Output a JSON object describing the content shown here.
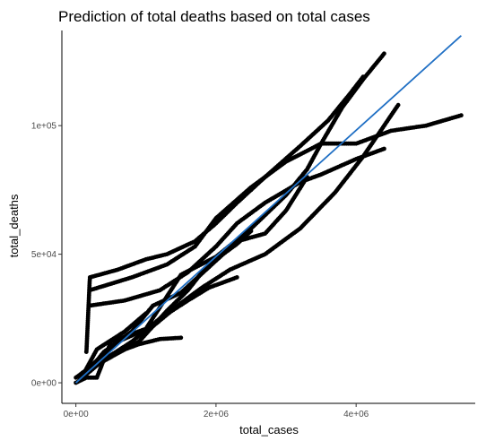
{
  "chart_data": {
    "type": "scatter",
    "title": "Prediction of total deaths based on total cases",
    "xlabel": "total_cases",
    "ylabel": "total_deaths",
    "xlim": [
      -200000,
      5700000
    ],
    "ylim": [
      -8000,
      137000
    ],
    "x_ticks": [
      {
        "value": 0,
        "label": "0e+00"
      },
      {
        "value": 2000000,
        "label": "2e+06"
      },
      {
        "value": 4000000,
        "label": "4e+06"
      }
    ],
    "y_ticks": [
      {
        "value": 0,
        "label": "0e+00"
      },
      {
        "value": 50000,
        "label": "5e+04"
      },
      {
        "value": 100000,
        "label": "1e+05"
      }
    ],
    "grid": false,
    "legend": "none",
    "point_color": "#000000",
    "fit_color": "#1f6fc4",
    "series": [
      {
        "points": [
          [
            0,
            0
          ],
          [
            150000,
            2000
          ],
          [
            300000,
            2000
          ],
          [
            500000,
            16000
          ],
          [
            1000000,
            21000
          ],
          [
            1500000,
            42000
          ],
          [
            2000000,
            49000
          ],
          [
            2500000,
            60000
          ],
          [
            3000000,
            73000
          ],
          [
            3300000,
            83000
          ],
          [
            3500000,
            93000
          ],
          [
            3800000,
            107000
          ],
          [
            4100000,
            118000
          ],
          [
            4400000,
            128000
          ]
        ]
      },
      {
        "points": [
          [
            150000,
            12000
          ],
          [
            200000,
            41000
          ],
          [
            600000,
            44000
          ],
          [
            1000000,
            48000
          ],
          [
            1300000,
            50000
          ],
          [
            1700000,
            55000
          ],
          [
            2000000,
            62000
          ],
          [
            2300000,
            70000
          ],
          [
            2700000,
            80000
          ],
          [
            3200000,
            92000
          ],
          [
            3600000,
            102000
          ],
          [
            3900000,
            112000
          ],
          [
            4100000,
            119000
          ]
        ]
      },
      {
        "points": [
          [
            200000,
            36000
          ],
          [
            800000,
            41000
          ],
          [
            1300000,
            46000
          ],
          [
            1700000,
            53000
          ],
          [
            2000000,
            64000
          ],
          [
            2500000,
            76000
          ],
          [
            3000000,
            86000
          ],
          [
            3500000,
            93000
          ],
          [
            4000000,
            93000
          ],
          [
            4500000,
            98000
          ],
          [
            5000000,
            100000
          ],
          [
            5500000,
            104000
          ]
        ]
      },
      {
        "points": [
          [
            200000,
            30000
          ],
          [
            700000,
            32000
          ],
          [
            1200000,
            36000
          ],
          [
            1600000,
            43000
          ],
          [
            2000000,
            53000
          ],
          [
            2300000,
            62000
          ],
          [
            2700000,
            70000
          ],
          [
            3200000,
            78000
          ],
          [
            3500000,
            81000
          ],
          [
            4000000,
            87000
          ],
          [
            4400000,
            91000
          ]
        ]
      },
      {
        "points": [
          [
            150000,
            5000
          ],
          [
            600000,
            16000
          ],
          [
            1100000,
            22000
          ],
          [
            1500000,
            31000
          ],
          [
            1800000,
            37000
          ],
          [
            2200000,
            44000
          ],
          [
            2700000,
            50000
          ],
          [
            3200000,
            60000
          ],
          [
            3700000,
            74000
          ],
          [
            4100000,
            88000
          ],
          [
            4400000,
            100000
          ],
          [
            4600000,
            108000
          ]
        ]
      },
      {
        "points": [
          [
            50000,
            1000
          ],
          [
            400000,
            9000
          ],
          [
            800000,
            16000
          ],
          [
            1200000,
            25000
          ],
          [
            1600000,
            32000
          ],
          [
            1900000,
            37000
          ],
          [
            2300000,
            41000
          ]
        ]
      },
      {
        "points": [
          [
            100000,
            4000
          ],
          [
            500000,
            10000
          ],
          [
            900000,
            16000
          ],
          [
            1300000,
            28000
          ],
          [
            1600000,
            36000
          ],
          [
            1800000,
            43000
          ],
          [
            2000000,
            48000
          ],
          [
            2300000,
            54000
          ],
          [
            2500000,
            59000
          ]
        ]
      },
      {
        "points": [
          [
            0,
            2000
          ],
          [
            300000,
            8000
          ],
          [
            600000,
            12000
          ],
          [
            900000,
            15000
          ],
          [
            1200000,
            17000
          ],
          [
            1500000,
            17500
          ]
        ]
      },
      {
        "points": [
          [
            100000,
            3000
          ],
          [
            300000,
            13000
          ],
          [
            700000,
            20000
          ],
          [
            1000000,
            27000
          ]
        ]
      },
      {
        "points": [
          [
            100000,
            2000
          ],
          [
            400000,
            12000
          ],
          [
            800000,
            20000
          ],
          [
            1100000,
            30000
          ],
          [
            1500000,
            35000
          ],
          [
            1900000,
            45000
          ],
          [
            2300000,
            55000
          ],
          [
            2700000,
            58000
          ],
          [
            3000000,
            67000
          ],
          [
            3300000,
            80000
          ]
        ]
      }
    ],
    "fit_line": {
      "x": [
        0,
        5500000
      ],
      "y": [
        0,
        135000
      ]
    }
  }
}
